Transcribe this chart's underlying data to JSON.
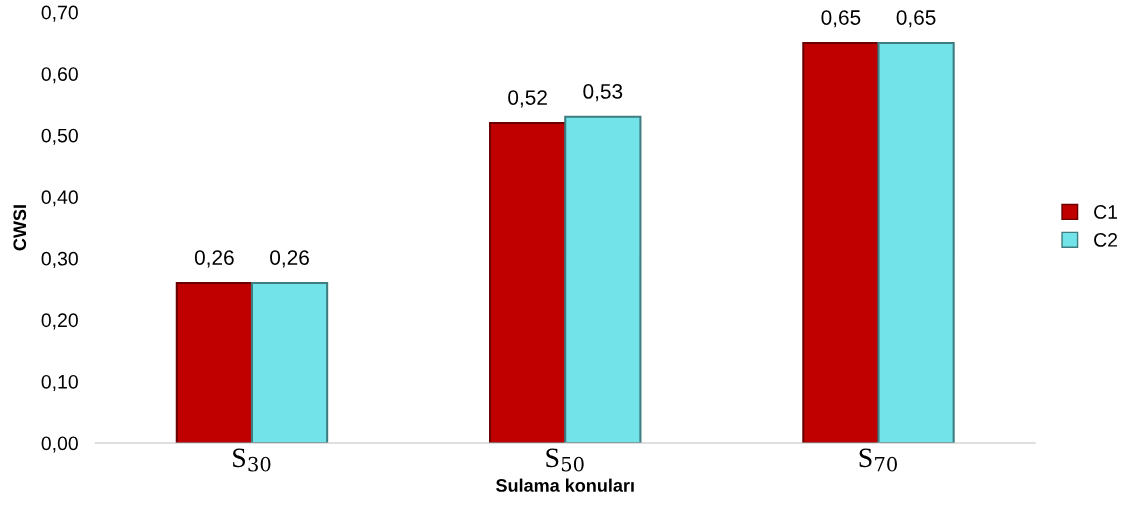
{
  "chart_data": {
    "type": "bar",
    "xlabel": "Sulama konuları",
    "ylabel": "CWSI",
    "categories": [
      "S$_{30}$",
      "S$_{50}$",
      "S$_{70}$"
    ],
    "series": [
      {
        "name": "C1",
        "color": "#c00000",
        "values": [
          0.26,
          0.52,
          0.65
        ],
        "value_labels": [
          "0,26",
          "0,52",
          "0,65"
        ]
      },
      {
        "name": "C2",
        "color": "#72e3e8",
        "values": [
          0.26,
          0.53,
          0.65
        ],
        "value_labels": [
          "0,26",
          "0,53",
          "0,65"
        ]
      }
    ],
    "ylim": [
      0,
      0.7
    ],
    "yticks": [
      {
        "value": 0,
        "label": "0,00"
      },
      {
        "value": 0.1,
        "label": "0,10"
      },
      {
        "value": 0.2,
        "label": "0,20"
      },
      {
        "value": 0.3,
        "label": "0,30"
      },
      {
        "value": 0.4,
        "label": "0,40"
      },
      {
        "value": 0.5,
        "label": "0,50"
      },
      {
        "value": 0.6,
        "label": "0,60"
      },
      {
        "value": 0.7,
        "label": "0,70"
      }
    ],
    "grid": false,
    "legend": "right"
  }
}
